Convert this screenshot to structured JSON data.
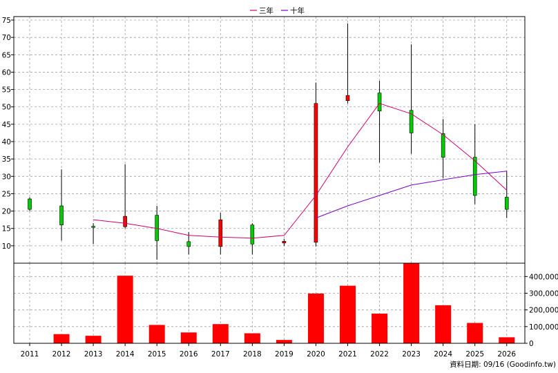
{
  "chart_data": [
    {
      "type": "candlestick",
      "legend": [
        {
          "name": "三年",
          "color": "#d4006a"
        },
        {
          "name": "十年",
          "color": "#7a00cc"
        }
      ],
      "legend_placement": "top-center",
      "y_ticks": [
        "10",
        "15",
        "20",
        "25",
        "30",
        "35",
        "40",
        "45",
        "50",
        "55",
        "60",
        "65",
        "70",
        "75"
      ],
      "y_range": [
        5,
        76
      ],
      "grid": true,
      "categories": [
        "2011",
        "2012",
        "2013",
        "2014",
        "2015",
        "2016",
        "2017",
        "2018",
        "2019",
        "2020",
        "2021",
        "2022",
        "2023",
        "2024",
        "2025",
        "2026"
      ],
      "candles": [
        {
          "open": 20.5,
          "close": 23.5,
          "high": 24.0,
          "low": 20.0
        },
        {
          "open": 16.0,
          "close": 21.5,
          "high": 32.0,
          "low": 11.5
        },
        {
          "open": 15.3,
          "close": 15.6,
          "high": 16.5,
          "low": 10.5
        },
        {
          "open": 18.5,
          "close": 15.5,
          "high": 33.5,
          "low": 15.0
        },
        {
          "open": 11.5,
          "close": 18.8,
          "high": 21.5,
          "low": 6.0
        },
        {
          "open": 9.8,
          "close": 11.2,
          "high": 14.0,
          "low": 7.5
        },
        {
          "open": 17.5,
          "close": 9.8,
          "high": 19.5,
          "low": 7.5
        },
        {
          "open": 10.5,
          "close": 16.0,
          "high": 16.5,
          "low": 7.5
        },
        {
          "open": 11.3,
          "close": 10.8,
          "high": 12.0,
          "low": 10.0
        },
        {
          "open": 51.0,
          "close": 11.0,
          "high": 57.0,
          "low": 9.8
        },
        {
          "open": 53.3,
          "close": 51.8,
          "high": 74.0,
          "low": 51.0
        },
        {
          "open": 48.8,
          "close": 54.0,
          "high": 57.5,
          "low": 34.0
        },
        {
          "open": 42.5,
          "close": 49.0,
          "high": 68.0,
          "low": 36.5
        },
        {
          "open": 35.5,
          "close": 42.3,
          "high": 46.5,
          "low": 29.5
        },
        {
          "open": 24.5,
          "close": 35.5,
          "high": 45.0,
          "low": 22.0
        },
        {
          "open": 20.5,
          "close": 24.0,
          "high": 31.5,
          "low": 18.0
        }
      ],
      "series": [
        {
          "name": "三年",
          "values": [
            null,
            null,
            17.5,
            16.5,
            15.0,
            13.0,
            12.5,
            12.2,
            13.0,
            24.5,
            38.5,
            51.0,
            48.0,
            42.0,
            34.5,
            26.0
          ]
        },
        {
          "name": "十年",
          "values": [
            null,
            null,
            null,
            null,
            null,
            null,
            null,
            null,
            null,
            18.0,
            21.5,
            24.5,
            27.5,
            29.0,
            30.5,
            31.5
          ]
        }
      ]
    },
    {
      "type": "bar",
      "categories": [
        "2011",
        "2012",
        "2013",
        "2014",
        "2015",
        "2016",
        "2017",
        "2018",
        "2019",
        "2020",
        "2021",
        "2022",
        "2023",
        "2024",
        "2025",
        "2026"
      ],
      "values": [
        1500,
        55000,
        45000,
        405000,
        110000,
        65000,
        115000,
        60000,
        20000,
        298000,
        345000,
        178000,
        482000,
        228000,
        122000,
        36000
      ],
      "y_ticks": [
        "0",
        "100,000",
        "200,000",
        "300,000",
        "400,000"
      ],
      "y_range": [
        0,
        480000
      ],
      "bar_color": "#ff0000",
      "grid": true
    }
  ],
  "footer": {
    "source": "資料日期: 09/16  (Goodinfo.tw)"
  }
}
